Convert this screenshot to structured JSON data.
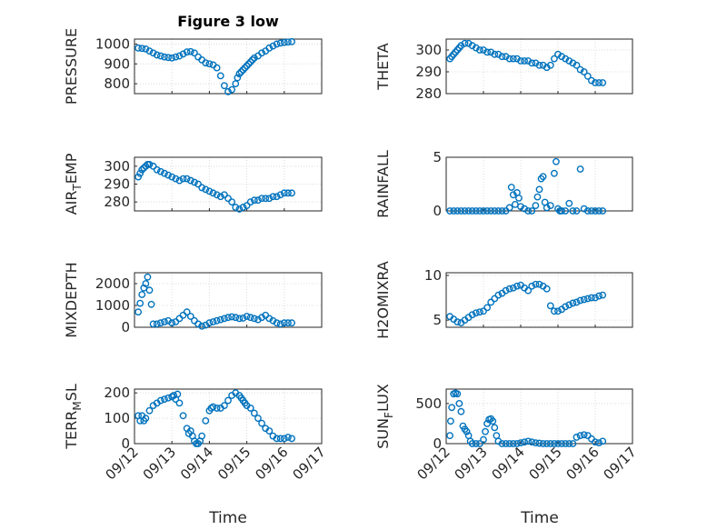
{
  "figure": {
    "title": "Figure 3 low",
    "xlabel": "Time",
    "xticks": [
      "09/12",
      "09/13",
      "09/14",
      "09/15",
      "09/16",
      "09/17"
    ],
    "marker_color": "#0072BD"
  },
  "chart_data": [
    {
      "type": "scatter",
      "ylabel": "PRESSURE",
      "xlabel": "",
      "ylim": [
        750,
        1025
      ],
      "yticks": [
        800,
        900,
        1000
      ],
      "xlim": [
        0,
        5
      ],
      "grid": true,
      "x": [
        0.1,
        0.2,
        0.3,
        0.4,
        0.5,
        0.6,
        0.7,
        0.8,
        0.9,
        1.0,
        1.1,
        1.2,
        1.3,
        1.4,
        1.5,
        1.6,
        1.7,
        1.8,
        1.9,
        2.0,
        2.1,
        2.2,
        2.3,
        2.4,
        2.5,
        2.6,
        2.7,
        2.75,
        2.8,
        2.85,
        2.9,
        2.95,
        3.0,
        3.05,
        3.1,
        3.15,
        3.2,
        3.3,
        3.4,
        3.5,
        3.6,
        3.7,
        3.8,
        3.9,
        4.0,
        4.1,
        4.2
      ],
      "y": [
        980,
        978,
        975,
        965,
        955,
        945,
        940,
        935,
        932,
        930,
        935,
        940,
        950,
        960,
        962,
        955,
        935,
        920,
        905,
        900,
        895,
        880,
        840,
        790,
        760,
        770,
        800,
        830,
        850,
        860,
        870,
        880,
        890,
        900,
        910,
        920,
        930,
        940,
        955,
        965,
        980,
        990,
        1000,
        1005,
        1008,
        1010,
        1012
      ]
    },
    {
      "type": "scatter",
      "ylabel": "THETA",
      "xlabel": "",
      "ylim": [
        280,
        305
      ],
      "yticks": [
        280,
        290,
        300
      ],
      "xlim": [
        0,
        5
      ],
      "grid": true,
      "x": [
        0.1,
        0.15,
        0.2,
        0.25,
        0.3,
        0.35,
        0.4,
        0.5,
        0.6,
        0.7,
        0.8,
        0.9,
        1.0,
        1.1,
        1.2,
        1.3,
        1.4,
        1.5,
        1.6,
        1.7,
        1.8,
        1.9,
        2.0,
        2.1,
        2.2,
        2.3,
        2.4,
        2.5,
        2.6,
        2.7,
        2.8,
        2.9,
        3.0,
        3.1,
        3.2,
        3.3,
        3.4,
        3.5,
        3.6,
        3.7,
        3.8,
        3.9,
        4.0,
        4.1,
        4.2
      ],
      "y": [
        296,
        297,
        298,
        299,
        300,
        301,
        302,
        303,
        303,
        302,
        301,
        300,
        300,
        299,
        299,
        298,
        298,
        297,
        297,
        296,
        296,
        296,
        295,
        295,
        295,
        294,
        294,
        293,
        293,
        292,
        293,
        296,
        298,
        297,
        296,
        295,
        294,
        293,
        291,
        290,
        288,
        286,
        285,
        285,
        285
      ]
    },
    {
      "type": "scatter",
      "ylabel": "AIR_TEMP",
      "xlabel": "",
      "ylim": [
        275,
        305
      ],
      "yticks": [
        280,
        290,
        300
      ],
      "xlim": [
        0,
        5
      ],
      "grid": true,
      "x": [
        0.1,
        0.15,
        0.2,
        0.25,
        0.3,
        0.35,
        0.4,
        0.5,
        0.6,
        0.7,
        0.8,
        0.9,
        1.0,
        1.1,
        1.2,
        1.3,
        1.4,
        1.5,
        1.6,
        1.7,
        1.8,
        1.9,
        2.0,
        2.1,
        2.2,
        2.3,
        2.4,
        2.5,
        2.6,
        2.7,
        2.8,
        2.9,
        3.0,
        3.1,
        3.2,
        3.3,
        3.4,
        3.5,
        3.6,
        3.7,
        3.8,
        3.9,
        4.0,
        4.1,
        4.2
      ],
      "y": [
        294,
        296,
        298,
        299,
        300,
        301,
        301,
        300,
        298,
        297,
        296,
        295,
        294,
        293,
        292,
        293,
        293,
        292,
        291,
        290,
        288,
        287,
        286,
        285,
        284,
        283,
        284,
        282,
        280,
        277,
        276,
        277,
        278,
        280,
        281,
        281,
        282,
        282,
        282,
        283,
        283,
        284,
        285,
        285,
        285
      ]
    },
    {
      "type": "scatter",
      "ylabel": "RAINFALL",
      "xlabel": "",
      "ylim": [
        0,
        5
      ],
      "yticks": [
        0,
        5
      ],
      "xlim": [
        0,
        5
      ],
      "grid": true,
      "x": [
        0.1,
        0.2,
        0.3,
        0.4,
        0.5,
        0.6,
        0.7,
        0.8,
        0.9,
        1.0,
        1.1,
        1.2,
        1.3,
        1.4,
        1.5,
        1.6,
        1.7,
        1.75,
        1.8,
        1.85,
        1.9,
        1.95,
        2.0,
        2.1,
        2.2,
        2.3,
        2.4,
        2.45,
        2.5,
        2.55,
        2.6,
        2.65,
        2.7,
        2.8,
        2.9,
        2.95,
        3.0,
        3.05,
        3.1,
        3.2,
        3.3,
        3.4,
        3.5,
        3.6,
        3.7,
        3.8,
        3.9,
        4.0,
        4.1,
        4.2
      ],
      "y": [
        0,
        0,
        0,
        0,
        0,
        0,
        0,
        0,
        0,
        0,
        0,
        0,
        0,
        0,
        0,
        0,
        0.3,
        2.2,
        1.5,
        0.6,
        1.7,
        1.2,
        0.4,
        0.2,
        0,
        0,
        0.5,
        1.3,
        2.0,
        3.0,
        3.2,
        0.8,
        0.3,
        0.5,
        3.5,
        4.6,
        0.2,
        0,
        0,
        0,
        0.7,
        0,
        0,
        3.9,
        0.2,
        0,
        0,
        0,
        0,
        0
      ]
    },
    {
      "type": "scatter",
      "ylabel": "MIXDEPTH",
      "xlabel": "",
      "ylim": [
        0,
        2500
      ],
      "yticks": [
        0,
        1000,
        2000
      ],
      "xlim": [
        0,
        5
      ],
      "grid": true,
      "x": [
        0.1,
        0.15,
        0.2,
        0.25,
        0.3,
        0.35,
        0.4,
        0.45,
        0.5,
        0.6,
        0.7,
        0.8,
        0.9,
        1.0,
        1.1,
        1.2,
        1.3,
        1.4,
        1.5,
        1.6,
        1.7,
        1.8,
        1.9,
        2.0,
        2.1,
        2.2,
        2.3,
        2.4,
        2.5,
        2.6,
        2.7,
        2.8,
        2.9,
        3.0,
        3.1,
        3.2,
        3.3,
        3.4,
        3.5,
        3.6,
        3.7,
        3.8,
        3.9,
        4.0,
        4.1,
        4.2
      ],
      "y": [
        700,
        1100,
        1500,
        1800,
        2000,
        2300,
        1700,
        1050,
        150,
        150,
        200,
        250,
        300,
        200,
        250,
        400,
        550,
        700,
        500,
        300,
        150,
        50,
        100,
        200,
        250,
        300,
        350,
        400,
        450,
        480,
        450,
        400,
        420,
        500,
        450,
        400,
        350,
        450,
        550,
        400,
        300,
        200,
        150,
        200,
        200,
        200
      ]
    },
    {
      "type": "scatter",
      "ylabel": "H2OMIXRA",
      "xlabel": "",
      "ylim": [
        4.2,
        10.3
      ],
      "yticks": [
        5,
        10
      ],
      "xlim": [
        0,
        5
      ],
      "grid": true,
      "x": [
        0.1,
        0.2,
        0.3,
        0.4,
        0.5,
        0.6,
        0.7,
        0.8,
        0.9,
        1.0,
        1.1,
        1.2,
        1.3,
        1.4,
        1.5,
        1.6,
        1.7,
        1.8,
        1.9,
        2.0,
        2.1,
        2.2,
        2.3,
        2.4,
        2.5,
        2.6,
        2.7,
        2.8,
        2.9,
        3.0,
        3.1,
        3.2,
        3.3,
        3.4,
        3.5,
        3.6,
        3.7,
        3.8,
        3.9,
        4.0,
        4.1,
        4.2
      ],
      "y": [
        5.4,
        5.1,
        4.8,
        4.7,
        5.0,
        5.3,
        5.6,
        5.8,
        5.9,
        6.0,
        6.4,
        7.0,
        7.4,
        7.8,
        8.0,
        8.3,
        8.5,
        8.6,
        8.8,
        8.9,
        8.6,
        8.3,
        8.8,
        9.0,
        9.0,
        8.8,
        8.5,
        6.6,
        6.0,
        6.0,
        6.2,
        6.5,
        6.7,
        6.9,
        7.0,
        7.2,
        7.3,
        7.4,
        7.5,
        7.5,
        7.7,
        7.8
      ]
    },
    {
      "type": "scatter",
      "ylabel": "TERR_MSL",
      "xlabel": "",
      "ylim": [
        0,
        215
      ],
      "yticks": [
        0,
        100,
        200
      ],
      "xlim": [
        0,
        5
      ],
      "grid": true,
      "x": [
        0.1,
        0.15,
        0.2,
        0.25,
        0.3,
        0.4,
        0.5,
        0.6,
        0.7,
        0.8,
        0.9,
        1.0,
        1.05,
        1.1,
        1.15,
        1.2,
        1.3,
        1.4,
        1.45,
        1.5,
        1.55,
        1.6,
        1.65,
        1.7,
        1.75,
        1.8,
        1.9,
        2.0,
        2.05,
        2.1,
        2.2,
        2.3,
        2.4,
        2.5,
        2.6,
        2.7,
        2.8,
        2.85,
        2.9,
        2.95,
        3.0,
        3.1,
        3.2,
        3.3,
        3.4,
        3.5,
        3.6,
        3.7,
        3.8,
        3.9,
        4.0,
        4.1,
        4.2
      ],
      "y": [
        110,
        90,
        110,
        90,
        100,
        130,
        150,
        160,
        170,
        175,
        180,
        185,
        190,
        175,
        195,
        160,
        110,
        60,
        40,
        50,
        30,
        10,
        0,
        0,
        10,
        30,
        90,
        130,
        140,
        145,
        140,
        140,
        150,
        170,
        190,
        200,
        190,
        180,
        170,
        160,
        150,
        140,
        120,
        100,
        80,
        60,
        50,
        30,
        20,
        20,
        20,
        25,
        20
      ]
    },
    {
      "type": "scatter",
      "ylabel": "SUN_FLUX",
      "xlabel": "",
      "ylim": [
        0,
        680
      ],
      "yticks": [
        0,
        500
      ],
      "xlim": [
        0,
        5
      ],
      "grid": true,
      "x": [
        0.1,
        0.12,
        0.15,
        0.2,
        0.25,
        0.3,
        0.35,
        0.4,
        0.45,
        0.5,
        0.55,
        0.6,
        0.65,
        0.7,
        0.8,
        0.9,
        1.0,
        1.05,
        1.1,
        1.15,
        1.2,
        1.25,
        1.3,
        1.35,
        1.4,
        1.5,
        1.6,
        1.7,
        1.8,
        1.9,
        2.0,
        2.1,
        2.2,
        2.3,
        2.4,
        2.5,
        2.6,
        2.7,
        2.8,
        2.9,
        3.0,
        3.1,
        3.2,
        3.3,
        3.4,
        3.5,
        3.6,
        3.7,
        3.8,
        3.9,
        4.0,
        4.1,
        4.2
      ],
      "y": [
        100,
        280,
        450,
        620,
        630,
        620,
        500,
        400,
        220,
        180,
        150,
        100,
        30,
        0,
        0,
        0,
        50,
        150,
        250,
        300,
        310,
        280,
        200,
        100,
        30,
        0,
        0,
        0,
        0,
        0,
        10,
        20,
        30,
        20,
        10,
        5,
        0,
        0,
        0,
        0,
        0,
        0,
        0,
        0,
        0,
        80,
        100,
        110,
        100,
        60,
        20,
        10,
        30
      ]
    }
  ]
}
